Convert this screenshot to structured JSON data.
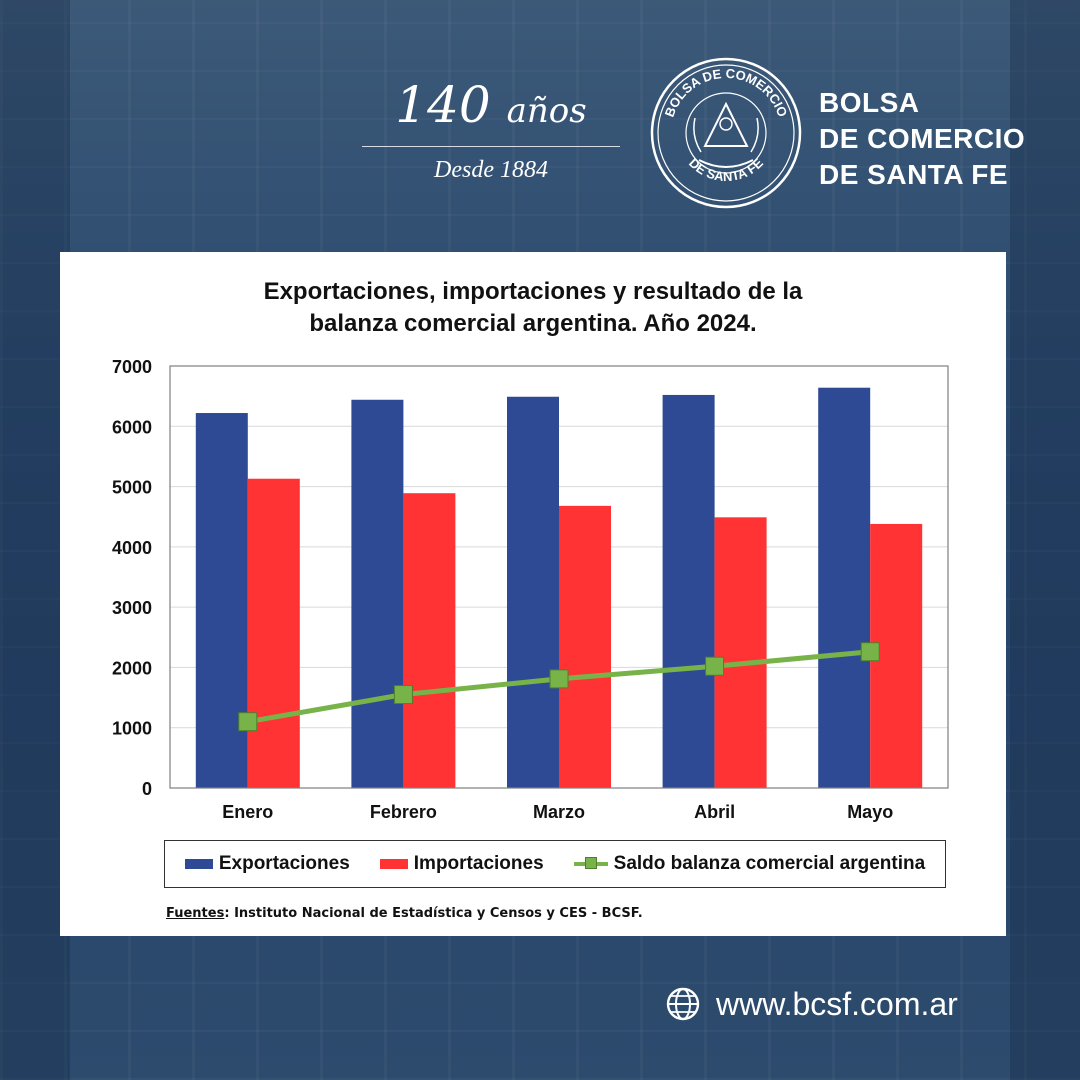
{
  "header": {
    "anniversary_number": "140",
    "anniversary_word": "años",
    "since": "Desde 1884",
    "seal_top_text": "BOLSA DE COMERCIO",
    "seal_bottom_text": "DE SANTA FE",
    "brand_lines": [
      "BOLSA",
      "DE COMERCIO",
      "DE SANTA FE"
    ]
  },
  "colors": {
    "exportaciones": "#2e4a94",
    "importaciones": "#ff3333",
    "saldo": "#78b34a",
    "background": "#2b4a6e"
  },
  "chart_data": {
    "type": "bar",
    "title_lines": [
      "Exportaciones, importaciones y resultado de la",
      "balanza comercial argentina. Año 2024."
    ],
    "categories": [
      "Enero",
      "Febrero",
      "Marzo",
      "Abril",
      "Mayo"
    ],
    "series": [
      {
        "name": "Exportaciones",
        "type": "bar",
        "values": [
          6220,
          6440,
          6490,
          6520,
          6640
        ]
      },
      {
        "name": "Importaciones",
        "type": "bar",
        "values": [
          5130,
          4890,
          4680,
          4490,
          4380
        ]
      },
      {
        "name": "Saldo balanza comercial argentina",
        "type": "line",
        "values": [
          1100,
          1550,
          1810,
          2020,
          2260
        ]
      }
    ],
    "ylim": [
      0,
      7000
    ],
    "yticks": [
      "0",
      "1000",
      "2000",
      "3000",
      "4000",
      "5000",
      "6000",
      "7000"
    ],
    "grid": true,
    "legend_position": "bottom"
  },
  "source": {
    "label": "Fuentes",
    "text": ": Instituto Nacional de Estadística y Censos y CES - BCSF."
  },
  "footer": {
    "website": "www.bcsf.com.ar"
  }
}
